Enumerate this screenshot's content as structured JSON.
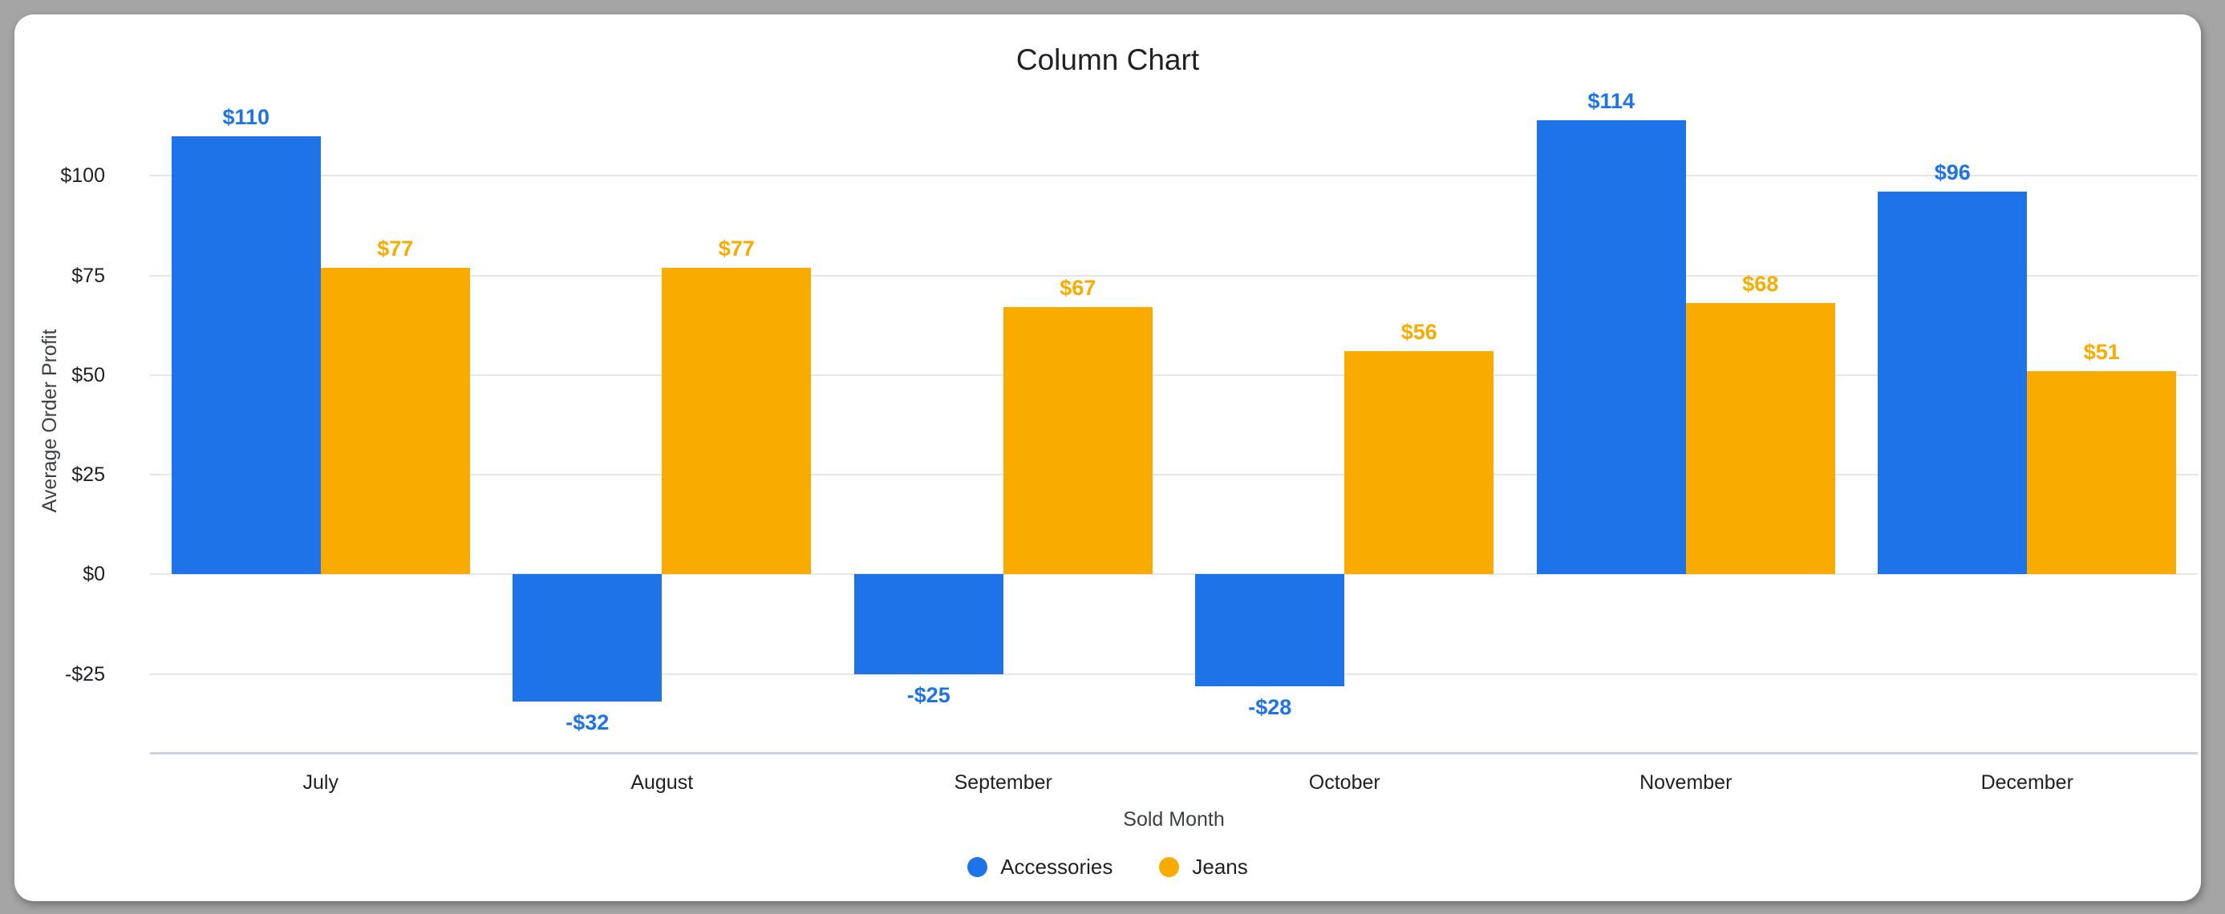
{
  "title": "Column Chart",
  "chart_data": {
    "type": "bar",
    "title": "Column Chart",
    "xlabel": "Sold Month",
    "ylabel": "Average Order Profit",
    "categories": [
      "July",
      "August",
      "September",
      "October",
      "November",
      "December"
    ],
    "series": [
      {
        "name": "Accessories",
        "color": "#1e73e8",
        "values": [
          110,
          -32,
          -25,
          -28,
          114,
          96
        ],
        "labels": [
          "$110",
          "-$32",
          "-$25",
          "-$28",
          "$114",
          "$96"
        ]
      },
      {
        "name": "Jeans",
        "color": "#f9ab00",
        "values": [
          77,
          77,
          67,
          56,
          68,
          51
        ],
        "labels": [
          "$77",
          "$77",
          "$67",
          "$56",
          "$68",
          "$51"
        ]
      }
    ],
    "y_ticks": [
      {
        "value": 100,
        "label": "$100"
      },
      {
        "value": 75,
        "label": "$75"
      },
      {
        "value": 50,
        "label": "$50"
      },
      {
        "value": 25,
        "label": "$25"
      },
      {
        "value": 0,
        "label": "$0"
      },
      {
        "value": -25,
        "label": "-$25"
      }
    ],
    "ylim": [
      -45,
      122
    ],
    "grid": true,
    "legend_position": "bottom",
    "colors": {
      "grid": "#e6e6e6",
      "axis_line": "#c9d2ec",
      "title_text": "#202124",
      "tick_text": "#202124",
      "axis_title_text": "#3c4043",
      "card_bg": "#ffffff",
      "page_bg": "#a5a5a5"
    }
  }
}
